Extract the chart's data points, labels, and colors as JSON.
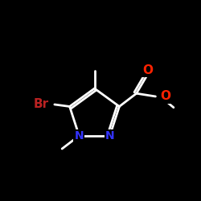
{
  "background_color": "#000000",
  "bond_color": "#ffffff",
  "atom_colors": {
    "O": "#ff2200",
    "N": "#3333ff",
    "Br": "#bb2222",
    "C": "#ffffff"
  },
  "figsize": [
    2.5,
    2.5
  ],
  "dpi": 100
}
